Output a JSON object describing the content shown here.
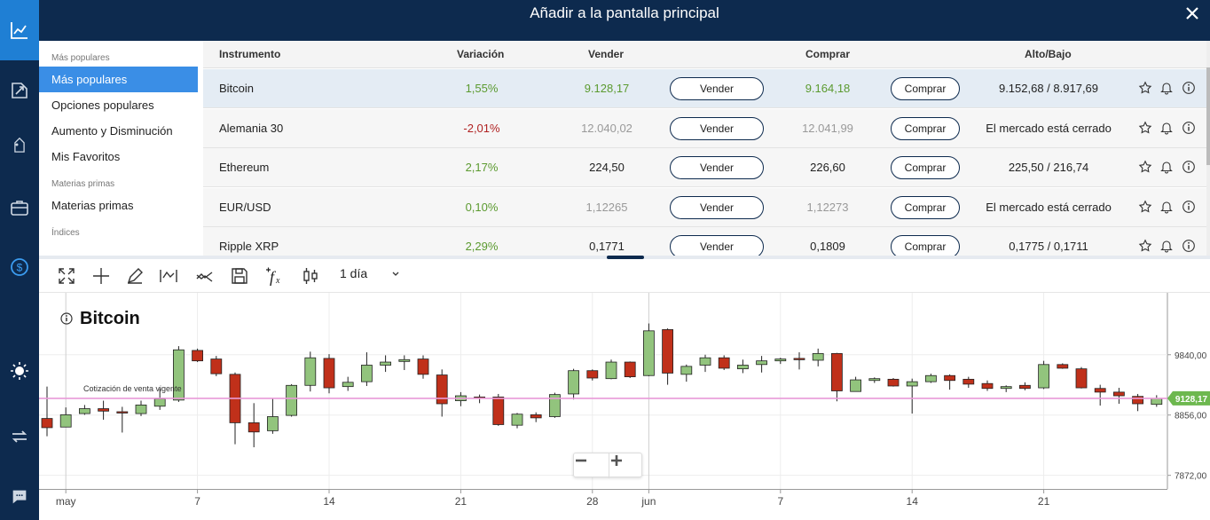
{
  "header": {
    "title": "Añadir a la pantalla principal"
  },
  "categories": [
    {
      "kind": "group",
      "label": "Más populares"
    },
    {
      "kind": "item",
      "label": "Más populares",
      "selected": true
    },
    {
      "kind": "item",
      "label": "Opciones populares"
    },
    {
      "kind": "item",
      "label": "Aumento y Disminución"
    },
    {
      "kind": "item",
      "label": "Mis Favoritos"
    },
    {
      "kind": "group",
      "label": "Materias primas"
    },
    {
      "kind": "item",
      "label": "Materias primas"
    },
    {
      "kind": "group",
      "label": "Índices"
    }
  ],
  "table": {
    "headers": {
      "instrument": "Instrumento",
      "change": "Variación",
      "sell": "Vender",
      "buy": "Comprar",
      "highlow": "Alto/Bajo"
    },
    "sell_label": "Vender",
    "buy_label": "Comprar",
    "rows": [
      {
        "instrument": "Bitcoin",
        "change": "1,55%",
        "change_dir": "pos",
        "sell": "9.128,17",
        "sell_style": "pos",
        "buy": "9.164,18",
        "buy_style": "pos",
        "highlow": "9.152,68 / 8.917,69",
        "selected": true
      },
      {
        "instrument": "Alemania 30",
        "change": "-2,01%",
        "change_dir": "neg",
        "sell": "12.040,02",
        "sell_style": "mute",
        "buy": "12.041,99",
        "buy_style": "mute",
        "highlow": "El mercado está cerrado"
      },
      {
        "instrument": "Ethereum",
        "change": "2,17%",
        "change_dir": "pos",
        "sell": "224,50",
        "sell_style": "",
        "buy": "226,60",
        "buy_style": "",
        "highlow": "225,50 / 216,74"
      },
      {
        "instrument": "EUR/USD",
        "change": "0,10%",
        "change_dir": "pos",
        "sell": "1,12265",
        "sell_style": "mute",
        "buy": "1,12273",
        "buy_style": "mute",
        "highlow": "El mercado está cerrado"
      },
      {
        "instrument": "Ripple XRP",
        "change": "2,29%",
        "change_dir": "pos",
        "sell": "0,1771",
        "sell_style": "",
        "buy": "0,1809",
        "buy_style": "",
        "highlow": "0,1775 / 0,1711"
      }
    ]
  },
  "toolbar": {
    "interval": "1 día"
  },
  "chart_data": {
    "type": "candlestick",
    "title": "Bitcoin",
    "current_label": "Cotización de venta vigente",
    "current_value_label": "9128,17",
    "current_value": 9128.17,
    "ylim": [
      7650,
      10850
    ],
    "y_ticks": [
      {
        "value": 9840,
        "label": "9840,00"
      },
      {
        "value": 8856,
        "label": "8856,00"
      },
      {
        "value": 7872,
        "label": "7872,00"
      }
    ],
    "x_ticks": [
      {
        "index": 1,
        "label": "may"
      },
      {
        "index": 8,
        "label": "7"
      },
      {
        "index": 15,
        "label": "14"
      },
      {
        "index": 22,
        "label": "21"
      },
      {
        "index": 29,
        "label": "28"
      },
      {
        "index": 32,
        "label": "jun"
      },
      {
        "index": 39,
        "label": "7"
      },
      {
        "index": 46,
        "label": "14"
      },
      {
        "index": 53,
        "label": "21"
      }
    ],
    "candles": [
      {
        "o": 8800,
        "h": 9320,
        "l": 8510,
        "c": 8650
      },
      {
        "o": 8660,
        "h": 8980,
        "l": 8660,
        "c": 8860
      },
      {
        "o": 8880,
        "h": 9020,
        "l": 8860,
        "c": 8960
      },
      {
        "o": 8960,
        "h": 9090,
        "l": 8780,
        "c": 8920
      },
      {
        "o": 8910,
        "h": 8990,
        "l": 8570,
        "c": 8890
      },
      {
        "o": 8880,
        "h": 9090,
        "l": 8840,
        "c": 9020
      },
      {
        "o": 9000,
        "h": 9290,
        "l": 8940,
        "c": 9120
      },
      {
        "o": 9100,
        "h": 9980,
        "l": 9070,
        "c": 9920
      },
      {
        "o": 9910,
        "h": 9940,
        "l": 9720,
        "c": 9740
      },
      {
        "o": 9770,
        "h": 9820,
        "l": 9490,
        "c": 9530
      },
      {
        "o": 9520,
        "h": 9550,
        "l": 8380,
        "c": 8730
      },
      {
        "o": 8730,
        "h": 9050,
        "l": 8330,
        "c": 8580
      },
      {
        "o": 8600,
        "h": 9120,
        "l": 8550,
        "c": 8830
      },
      {
        "o": 8850,
        "h": 9360,
        "l": 8830,
        "c": 9340
      },
      {
        "o": 9340,
        "h": 9890,
        "l": 9240,
        "c": 9790
      },
      {
        "o": 9780,
        "h": 9850,
        "l": 9210,
        "c": 9300
      },
      {
        "o": 9320,
        "h": 9480,
        "l": 9250,
        "c": 9390
      },
      {
        "o": 9400,
        "h": 9880,
        "l": 9330,
        "c": 9670
      },
      {
        "o": 9670,
        "h": 9830,
        "l": 9560,
        "c": 9720
      },
      {
        "o": 9730,
        "h": 9830,
        "l": 9590,
        "c": 9760
      },
      {
        "o": 9770,
        "h": 9830,
        "l": 9450,
        "c": 9520
      },
      {
        "o": 9510,
        "h": 9600,
        "l": 8830,
        "c": 9040
      },
      {
        "o": 9090,
        "h": 9230,
        "l": 9000,
        "c": 9170
      },
      {
        "o": 9150,
        "h": 9190,
        "l": 9050,
        "c": 9140
      },
      {
        "o": 9150,
        "h": 9200,
        "l": 8680,
        "c": 8700
      },
      {
        "o": 8690,
        "h": 8890,
        "l": 8640,
        "c": 8870
      },
      {
        "o": 8860,
        "h": 8900,
        "l": 8740,
        "c": 8810
      },
      {
        "o": 8830,
        "h": 9220,
        "l": 8810,
        "c": 9190
      },
      {
        "o": 9200,
        "h": 9610,
        "l": 9110,
        "c": 9580
      },
      {
        "o": 9580,
        "h": 9600,
        "l": 9420,
        "c": 9460
      },
      {
        "o": 9450,
        "h": 9760,
        "l": 9440,
        "c": 9720
      },
      {
        "o": 9720,
        "h": 9730,
        "l": 9460,
        "c": 9480
      },
      {
        "o": 9500,
        "h": 10350,
        "l": 9490,
        "c": 10230
      },
      {
        "o": 10250,
        "h": 10270,
        "l": 9350,
        "c": 9540
      },
      {
        "o": 9520,
        "h": 9680,
        "l": 9400,
        "c": 9650
      },
      {
        "o": 9670,
        "h": 9840,
        "l": 9560,
        "c": 9790
      },
      {
        "o": 9790,
        "h": 9830,
        "l": 9590,
        "c": 9620
      },
      {
        "o": 9610,
        "h": 9760,
        "l": 9540,
        "c": 9670
      },
      {
        "o": 9680,
        "h": 9820,
        "l": 9550,
        "c": 9740
      },
      {
        "o": 9740,
        "h": 9790,
        "l": 9690,
        "c": 9770
      },
      {
        "o": 9780,
        "h": 9880,
        "l": 9600,
        "c": 9760
      },
      {
        "o": 9750,
        "h": 9940,
        "l": 9650,
        "c": 9860
      },
      {
        "o": 9860,
        "h": 9870,
        "l": 9080,
        "c": 9250
      },
      {
        "o": 9240,
        "h": 9480,
        "l": 9240,
        "c": 9430
      },
      {
        "o": 9420,
        "h": 9470,
        "l": 9380,
        "c": 9450
      },
      {
        "o": 9440,
        "h": 9460,
        "l": 9320,
        "c": 9330
      },
      {
        "o": 9330,
        "h": 9450,
        "l": 8880,
        "c": 9400
      },
      {
        "o": 9400,
        "h": 9530,
        "l": 9380,
        "c": 9500
      },
      {
        "o": 9500,
        "h": 9520,
        "l": 9270,
        "c": 9420
      },
      {
        "o": 9440,
        "h": 9480,
        "l": 9300,
        "c": 9360
      },
      {
        "o": 9370,
        "h": 9420,
        "l": 9250,
        "c": 9290
      },
      {
        "o": 9290,
        "h": 9340,
        "l": 9230,
        "c": 9320
      },
      {
        "o": 9340,
        "h": 9390,
        "l": 9260,
        "c": 9290
      },
      {
        "o": 9300,
        "h": 9740,
        "l": 9280,
        "c": 9680
      },
      {
        "o": 9680,
        "h": 9700,
        "l": 9610,
        "c": 9620
      },
      {
        "o": 9610,
        "h": 9640,
        "l": 9290,
        "c": 9300
      },
      {
        "o": 9290,
        "h": 9350,
        "l": 9010,
        "c": 9230
      },
      {
        "o": 9230,
        "h": 9300,
        "l": 9040,
        "c": 9170
      },
      {
        "o": 9160,
        "h": 9200,
        "l": 8920,
        "c": 9040
      },
      {
        "o": 9030,
        "h": 9180,
        "l": 8990,
        "c": 9128
      }
    ]
  }
}
